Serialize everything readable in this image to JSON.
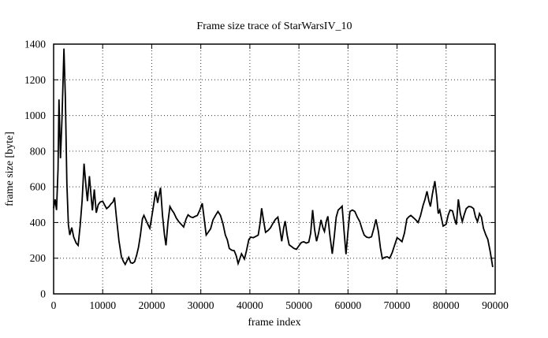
{
  "window": {
    "title": "Frame size trace of StarWarsIV_10"
  },
  "chart_data": {
    "type": "line",
    "title": "Frame size trace of StarWarsIV_10",
    "xlabel": "frame index",
    "ylabel": "frame size [byte]",
    "xlim": [
      0,
      90000
    ],
    "ylim": [
      0,
      1400
    ],
    "x_ticks": [
      0,
      10000,
      20000,
      30000,
      40000,
      50000,
      60000,
      70000,
      80000,
      90000
    ],
    "y_ticks": [
      0,
      200,
      400,
      600,
      800,
      1000,
      1200,
      1400
    ],
    "grid": true,
    "grid_style": "dotted",
    "legend_position": "none",
    "line_color": "#000000",
    "grid_color": "#333333",
    "background_color": "#ffffff",
    "series": [
      {
        "name": "frame size",
        "points": [
          [
            0,
            480
          ],
          [
            300,
            530
          ],
          [
            600,
            470
          ],
          [
            900,
            700
          ],
          [
            1100,
            1090
          ],
          [
            1400,
            760
          ],
          [
            1700,
            980
          ],
          [
            2100,
            1375
          ],
          [
            2400,
            1100
          ],
          [
            2700,
            620
          ],
          [
            3000,
            390
          ],
          [
            3300,
            330
          ],
          [
            3700,
            372
          ],
          [
            4100,
            318
          ],
          [
            4600,
            285
          ],
          [
            5000,
            272
          ],
          [
            5400,
            380
          ],
          [
            5800,
            520
          ],
          [
            6200,
            730
          ],
          [
            6600,
            600
          ],
          [
            6900,
            520
          ],
          [
            7300,
            660
          ],
          [
            7700,
            530
          ],
          [
            7900,
            468
          ],
          [
            8300,
            585
          ],
          [
            8700,
            455
          ],
          [
            9100,
            500
          ],
          [
            9500,
            515
          ],
          [
            10000,
            520
          ],
          [
            10400,
            498
          ],
          [
            10800,
            478
          ],
          [
            11300,
            490
          ],
          [
            11700,
            505
          ],
          [
            12100,
            515
          ],
          [
            12400,
            540
          ],
          [
            12800,
            430
          ],
          [
            13300,
            300
          ],
          [
            13800,
            210
          ],
          [
            14200,
            183
          ],
          [
            14600,
            165
          ],
          [
            15000,
            188
          ],
          [
            15300,
            205
          ],
          [
            15700,
            175
          ],
          [
            16100,
            172
          ],
          [
            16500,
            180
          ],
          [
            16900,
            215
          ],
          [
            17300,
            260
          ],
          [
            17700,
            330
          ],
          [
            18100,
            420
          ],
          [
            18400,
            440
          ],
          [
            18800,
            415
          ],
          [
            19200,
            390
          ],
          [
            19600,
            368
          ],
          [
            20000,
            430
          ],
          [
            20400,
            500
          ],
          [
            20800,
            575
          ],
          [
            21200,
            510
          ],
          [
            21800,
            595
          ],
          [
            22200,
            440
          ],
          [
            22600,
            330
          ],
          [
            22900,
            272
          ],
          [
            23300,
            400
          ],
          [
            23700,
            490
          ],
          [
            24100,
            470
          ],
          [
            24500,
            455
          ],
          [
            25000,
            425
          ],
          [
            25500,
            405
          ],
          [
            26000,
            390
          ],
          [
            26500,
            375
          ],
          [
            27000,
            420
          ],
          [
            27400,
            443
          ],
          [
            27900,
            432
          ],
          [
            28400,
            428
          ],
          [
            28900,
            435
          ],
          [
            29300,
            440
          ],
          [
            29800,
            470
          ],
          [
            30300,
            508
          ],
          [
            30700,
            420
          ],
          [
            31100,
            330
          ],
          [
            31500,
            345
          ],
          [
            32000,
            365
          ],
          [
            32500,
            415
          ],
          [
            33000,
            440
          ],
          [
            33500,
            462
          ],
          [
            34000,
            440
          ],
          [
            34500,
            395
          ],
          [
            35000,
            330
          ],
          [
            35400,
            303
          ],
          [
            35800,
            255
          ],
          [
            36300,
            245
          ],
          [
            36800,
            242
          ],
          [
            37200,
            215
          ],
          [
            37600,
            170
          ],
          [
            38000,
            200
          ],
          [
            38300,
            225
          ],
          [
            38600,
            210
          ],
          [
            38900,
            195
          ],
          [
            39300,
            240
          ],
          [
            39800,
            305
          ],
          [
            40200,
            318
          ],
          [
            40700,
            315
          ],
          [
            41200,
            322
          ],
          [
            41700,
            330
          ],
          [
            42100,
            400
          ],
          [
            42400,
            480
          ],
          [
            42800,
            410
          ],
          [
            43200,
            345
          ],
          [
            43700,
            355
          ],
          [
            44200,
            370
          ],
          [
            44700,
            395
          ],
          [
            45200,
            417
          ],
          [
            45700,
            430
          ],
          [
            46100,
            370
          ],
          [
            46500,
            295
          ],
          [
            46900,
            370
          ],
          [
            47200,
            408
          ],
          [
            47600,
            330
          ],
          [
            48000,
            275
          ],
          [
            48500,
            265
          ],
          [
            49000,
            255
          ],
          [
            49500,
            250
          ],
          [
            50000,
            270
          ],
          [
            50500,
            288
          ],
          [
            51000,
            292
          ],
          [
            51500,
            285
          ],
          [
            52000,
            290
          ],
          [
            52400,
            340
          ],
          [
            52800,
            470
          ],
          [
            53200,
            360
          ],
          [
            53600,
            295
          ],
          [
            54000,
            340
          ],
          [
            54500,
            415
          ],
          [
            54900,
            370
          ],
          [
            55200,
            350
          ],
          [
            55600,
            410
          ],
          [
            55900,
            435
          ],
          [
            56300,
            330
          ],
          [
            56800,
            225
          ],
          [
            57200,
            320
          ],
          [
            57600,
            430
          ],
          [
            58000,
            470
          ],
          [
            58400,
            480
          ],
          [
            58800,
            492
          ],
          [
            59200,
            350
          ],
          [
            59600,
            222
          ],
          [
            60000,
            350
          ],
          [
            60400,
            462
          ],
          [
            60900,
            470
          ],
          [
            61400,
            462
          ],
          [
            61900,
            430
          ],
          [
            62400,
            405
          ],
          [
            62900,
            360
          ],
          [
            63300,
            330
          ],
          [
            63800,
            318
          ],
          [
            64300,
            315
          ],
          [
            64800,
            320
          ],
          [
            65300,
            370
          ],
          [
            65700,
            418
          ],
          [
            66200,
            350
          ],
          [
            66600,
            260
          ],
          [
            67000,
            197
          ],
          [
            67500,
            205
          ],
          [
            68000,
            208
          ],
          [
            68500,
            200
          ],
          [
            69000,
            230
          ],
          [
            69500,
            272
          ],
          [
            70000,
            315
          ],
          [
            70500,
            305
          ],
          [
            71000,
            293
          ],
          [
            71500,
            340
          ],
          [
            72000,
            420
          ],
          [
            72400,
            432
          ],
          [
            72800,
            440
          ],
          [
            73300,
            428
          ],
          [
            73800,
            415
          ],
          [
            74300,
            400
          ],
          [
            74800,
            440
          ],
          [
            75300,
            495
          ],
          [
            75700,
            530
          ],
          [
            76100,
            575
          ],
          [
            76500,
            520
          ],
          [
            76800,
            490
          ],
          [
            77200,
            560
          ],
          [
            77700,
            632
          ],
          [
            78100,
            540
          ],
          [
            78400,
            450
          ],
          [
            78700,
            470
          ],
          [
            79000,
            430
          ],
          [
            79400,
            380
          ],
          [
            80000,
            390
          ],
          [
            80400,
            440
          ],
          [
            80800,
            470
          ],
          [
            81300,
            465
          ],
          [
            81700,
            420
          ],
          [
            82100,
            388
          ],
          [
            82500,
            530
          ],
          [
            82900,
            450
          ],
          [
            83300,
            405
          ],
          [
            83700,
            445
          ],
          [
            84100,
            478
          ],
          [
            84600,
            490
          ],
          [
            85100,
            488
          ],
          [
            85600,
            478
          ],
          [
            86000,
            430
          ],
          [
            86400,
            405
          ],
          [
            86800,
            450
          ],
          [
            87200,
            430
          ],
          [
            87600,
            368
          ],
          [
            88100,
            330
          ],
          [
            88500,
            305
          ],
          [
            89000,
            235
          ],
          [
            89500,
            150
          ]
        ]
      }
    ]
  }
}
